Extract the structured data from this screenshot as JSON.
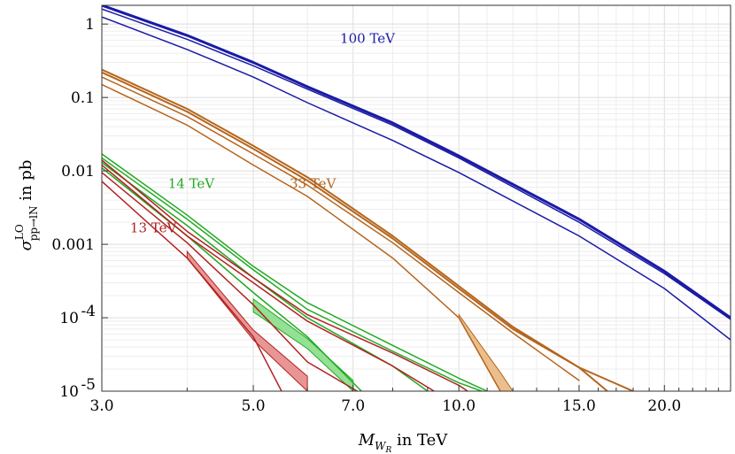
{
  "chart_data": {
    "type": "line",
    "title": "",
    "xlabel": "M_{W_R} in TeV",
    "xlabel_parts": {
      "symbol": "M",
      "sub": "W",
      "subsub": "R",
      "suffix": " in TeV"
    },
    "ylabel": "σ^{LO}_{pp→lN} in pb",
    "ylabel_parts": {
      "symbol": "σ",
      "sup": "LO",
      "sub": "pp→lN",
      "suffix": " in pb"
    },
    "xscale": "log",
    "yscale": "log",
    "xlim": [
      3.0,
      25.0
    ],
    "ylim": [
      1e-05,
      1.8
    ],
    "grid": true,
    "x_ticks": [
      {
        "value": 3,
        "label": "3.0"
      },
      {
        "value": 5,
        "label": "5.0"
      },
      {
        "value": 7,
        "label": "7.0"
      },
      {
        "value": 10,
        "label": "10.0"
      },
      {
        "value": 15,
        "label": "15.0"
      },
      {
        "value": 20,
        "label": "20.0"
      }
    ],
    "y_ticks": [
      {
        "value": 1,
        "label": "1"
      },
      {
        "value": 0.1,
        "label": "0.1"
      },
      {
        "value": 0.01,
        "label": "0.01"
      },
      {
        "value": 0.001,
        "label": "0.001"
      },
      {
        "value": 0.0001,
        "label": "10",
        "exp": "-4"
      },
      {
        "value": 1e-05,
        "label": "10",
        "exp": "-5"
      }
    ],
    "series": [
      {
        "name": "100 TeV (a)",
        "group": "100 TeV",
        "color": "#1a1aa6",
        "width": 3,
        "x": [
          3,
          4,
          5,
          6,
          8,
          10,
          15,
          20,
          25
        ],
        "values": [
          1.8,
          0.7,
          0.3,
          0.14,
          0.045,
          0.016,
          0.0022,
          0.00043,
          0.0001
        ]
      },
      {
        "name": "100 TeV (b)",
        "group": "100 TeV",
        "color": "#1a1aa6",
        "width": 1.5,
        "x": [
          3,
          4,
          5,
          6,
          8,
          10,
          15,
          20,
          25
        ],
        "values": [
          1.6,
          0.62,
          0.27,
          0.13,
          0.042,
          0.015,
          0.002,
          0.0004,
          9.5e-05
        ]
      },
      {
        "name": "100 TeV (c)",
        "group": "100 TeV",
        "color": "#1a1aa6",
        "width": 1.5,
        "x": [
          3,
          4,
          5,
          6,
          8,
          10,
          15,
          20,
          25
        ],
        "values": [
          1.25,
          0.45,
          0.19,
          0.085,
          0.026,
          0.0095,
          0.0013,
          0.00025,
          5e-05
        ]
      },
      {
        "name": "33 TeV (a)",
        "group": "33 TeV",
        "color": "#b5651d",
        "width": 2,
        "x": [
          3,
          4,
          5,
          6,
          8,
          10,
          12,
          15,
          16.5
        ],
        "values": [
          0.24,
          0.07,
          0.022,
          0.0082,
          0.0013,
          0.00027,
          7.5e-05,
          2.1e-05,
          1e-05
        ]
      },
      {
        "name": "33 TeV (b)",
        "group": "33 TeV",
        "color": "#b5651d",
        "width": 2,
        "x": [
          3,
          4,
          5,
          6,
          8,
          10,
          12,
          15,
          18
        ],
        "values": [
          0.22,
          0.064,
          0.02,
          0.0074,
          0.0012,
          0.00025,
          7e-05,
          2.1e-05,
          1e-05
        ]
      },
      {
        "name": "33 TeV (c)",
        "group": "33 TeV",
        "color": "#b5651d",
        "width": 1.5,
        "x": [
          3,
          4,
          5,
          6,
          8,
          10,
          12,
          15
        ],
        "values": [
          0.19,
          0.055,
          0.017,
          0.0064,
          0.00105,
          0.00022,
          6.2e-05,
          1.4e-05
        ]
      },
      {
        "name": "33 TeV (d)",
        "group": "33 TeV",
        "color": "#b5651d",
        "width": 1.5,
        "x": [
          3,
          4,
          5,
          6,
          8,
          10,
          11.5
        ],
        "values": [
          0.15,
          0.042,
          0.012,
          0.0045,
          0.00065,
          0.0001,
          1e-05
        ]
      },
      {
        "name": "14 TeV (a)",
        "group": "14 TeV",
        "color": "#22aa22",
        "width": 1.5,
        "x": [
          3,
          4,
          5,
          6,
          8,
          10,
          11
        ],
        "values": [
          0.017,
          0.0025,
          0.0005,
          0.00016,
          4.2e-05,
          1.5e-05,
          1e-05
        ]
      },
      {
        "name": "14 TeV (b)",
        "group": "14 TeV",
        "color": "#22aa22",
        "width": 1.5,
        "x": [
          3,
          4,
          5,
          6,
          8,
          10,
          10.8
        ],
        "values": [
          0.015,
          0.0022,
          0.00045,
          0.00013,
          3.5e-05,
          1.3e-05,
          1e-05
        ]
      },
      {
        "name": "14 TeV (c)",
        "group": "14 TeV",
        "color": "#22aa22",
        "width": 1.5,
        "x": [
          3,
          4,
          5,
          6,
          8,
          9
        ],
        "values": [
          0.013,
          0.0018,
          0.00035,
          0.0001,
          2.2e-05,
          1e-05
        ]
      },
      {
        "name": "14 TeV (d)",
        "group": "14 TeV",
        "color": "#22aa22",
        "width": 1.5,
        "x": [
          3,
          4,
          5,
          6,
          7.2
        ],
        "values": [
          0.011,
          0.0013,
          0.00022,
          5.5e-05,
          1e-05
        ]
      },
      {
        "name": "13 TeV (a)",
        "group": "13 TeV",
        "color": "#b22222",
        "width": 1.5,
        "x": [
          3,
          4,
          5,
          6,
          8,
          10,
          10.3
        ],
        "values": [
          0.014,
          0.0015,
          0.00035,
          0.00011,
          3.3e-05,
          1.2e-05,
          1e-05
        ]
      },
      {
        "name": "13 TeV (b)",
        "group": "13 TeV",
        "color": "#b22222",
        "width": 1.5,
        "x": [
          3,
          4,
          5,
          6,
          8,
          9.2
        ],
        "values": [
          0.012,
          0.0013,
          0.0003,
          9e-05,
          2.2e-05,
          1e-05
        ]
      },
      {
        "name": "13 TeV (c)",
        "group": "13 TeV",
        "color": "#b22222",
        "width": 1.5,
        "x": [
          3,
          4,
          5,
          6,
          7.1
        ],
        "values": [
          0.0095,
          0.00105,
          0.00015,
          2.5e-05,
          1e-05
        ]
      },
      {
        "name": "13 TeV (d)",
        "group": "13 TeV",
        "color": "#b22222",
        "width": 1.5,
        "x": [
          3,
          4,
          5,
          5.5
        ],
        "values": [
          0.0072,
          0.00065,
          5.5e-05,
          1e-05
        ]
      }
    ],
    "bands": [
      {
        "name": "33 TeV band",
        "group": "33 TeV",
        "fill": "#e8b880",
        "stroke": "#b5651d",
        "x": [
          10,
          11.5,
          12
        ],
        "lower": [
          0.0001,
          1e-05,
          1e-05
        ],
        "upper": [
          0.00011,
          1.8e-05,
          1e-05
        ]
      },
      {
        "name": "14 TeV band",
        "group": "14 TeV",
        "fill": "#88dd88",
        "stroke": "#22aa22",
        "x": [
          5,
          6,
          7
        ],
        "lower": [
          0.00012,
          3.8e-05,
          1e-05
        ],
        "upper": [
          0.00018,
          5.2e-05,
          1.4e-05
        ]
      },
      {
        "name": "13 TeV band",
        "group": "13 TeV",
        "fill": "#e58a8a",
        "stroke": "#b22222",
        "x": [
          4,
          5,
          6
        ],
        "lower": [
          0.00065,
          5e-05,
          1e-05
        ],
        "upper": [
          0.0008,
          6.8e-05,
          1.6e-05
        ]
      }
    ],
    "annotations": [
      {
        "text": "100 TeV",
        "color": "#1a1aa6",
        "x": 6.7,
        "y": 0.55
      },
      {
        "text": "33 TeV",
        "color": "#b5651d",
        "x": 5.65,
        "y": 0.0058
      },
      {
        "text": "14 TeV",
        "color": "#22aa22",
        "x": 3.75,
        "y": 0.0058
      },
      {
        "text": "13 TeV",
        "color": "#b22222",
        "x": 3.3,
        "y": 0.00145
      }
    ]
  }
}
